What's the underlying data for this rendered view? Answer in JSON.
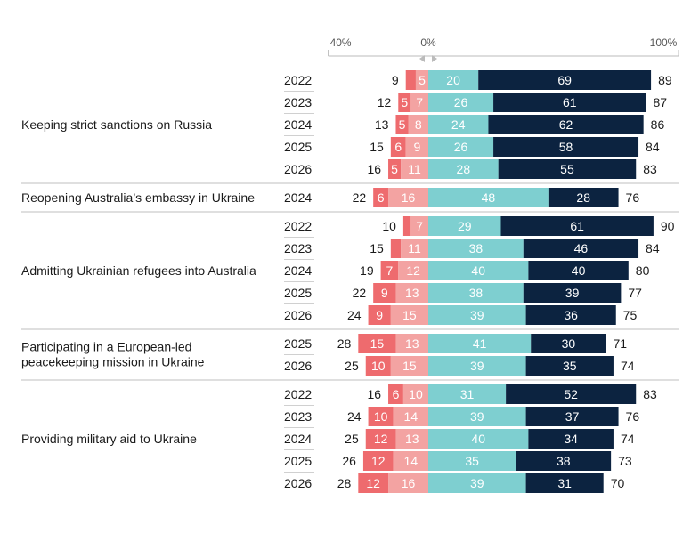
{
  "chart_data": {
    "type": "bar",
    "subtype": "diverging-stacked",
    "axis_ticks": {
      "left": "40%",
      "center": "0%",
      "right": "100%"
    },
    "xlim": [
      -40,
      100
    ],
    "colors": {
      "strongly_against": "#ee6b6e",
      "somewhat_against": "#f3a3a2",
      "somewhat_favour": "#7ecfd0",
      "strongly_favour": "#0c2340"
    },
    "groups": [
      {
        "label": "Keeping strict sanctions on Russia",
        "rows": [
          {
            "year": "2022",
            "against_total": 9,
            "strong_against": 4,
            "somewhat_against": 5,
            "somewhat_favour": 20,
            "strong_favour": 69,
            "favour_total": 89,
            "label_strong_against": ""
          },
          {
            "year": "2023",
            "against_total": 12,
            "strong_against": 5,
            "somewhat_against": 7,
            "somewhat_favour": 26,
            "strong_favour": 61,
            "favour_total": 87
          },
          {
            "year": "2024",
            "against_total": 13,
            "strong_against": 5,
            "somewhat_against": 8,
            "somewhat_favour": 24,
            "strong_favour": 62,
            "favour_total": 86
          },
          {
            "year": "2025",
            "against_total": 15,
            "strong_against": 6,
            "somewhat_against": 9,
            "somewhat_favour": 26,
            "strong_favour": 58,
            "favour_total": 84
          },
          {
            "year": "2026",
            "against_total": 16,
            "strong_against": 5,
            "somewhat_against": 11,
            "somewhat_favour": 28,
            "strong_favour": 55,
            "favour_total": 83
          }
        ]
      },
      {
        "label": "Reopening Australia’s embassy in Ukraine",
        "rows": [
          {
            "year": "2024",
            "against_total": 22,
            "strong_against": 6,
            "somewhat_against": 16,
            "somewhat_favour": 48,
            "strong_favour": 28,
            "favour_total": 76
          }
        ]
      },
      {
        "label": "Admitting Ukrainian refugees into Australia",
        "rows": [
          {
            "year": "2022",
            "against_total": 10,
            "strong_against": 3,
            "somewhat_against": 7,
            "somewhat_favour": 29,
            "strong_favour": 61,
            "favour_total": 90,
            "label_strong_against": ""
          },
          {
            "year": "2023",
            "against_total": 15,
            "strong_against": 4,
            "somewhat_against": 11,
            "somewhat_favour": 38,
            "strong_favour": 46,
            "favour_total": 84,
            "label_strong_against": ""
          },
          {
            "year": "2024",
            "against_total": 19,
            "strong_against": 7,
            "somewhat_against": 12,
            "somewhat_favour": 40,
            "strong_favour": 40,
            "favour_total": 80
          },
          {
            "year": "2025",
            "against_total": 22,
            "strong_against": 9,
            "somewhat_against": 13,
            "somewhat_favour": 38,
            "strong_favour": 39,
            "favour_total": 77
          },
          {
            "year": "2026",
            "against_total": 24,
            "strong_against": 9,
            "somewhat_against": 15,
            "somewhat_favour": 39,
            "strong_favour": 36,
            "favour_total": 75
          }
        ]
      },
      {
        "label_lines": [
          "Participating in a European-led",
          "peacekeeping mission in Ukraine"
        ],
        "rows": [
          {
            "year": "2025",
            "against_total": 28,
            "strong_against": 15,
            "somewhat_against": 13,
            "somewhat_favour": 41,
            "strong_favour": 30,
            "favour_total": 71
          },
          {
            "year": "2026",
            "against_total": 25,
            "strong_against": 10,
            "somewhat_against": 15,
            "somewhat_favour": 39,
            "strong_favour": 35,
            "favour_total": 74
          }
        ]
      },
      {
        "label": "Providing military aid to Ukraine",
        "rows": [
          {
            "year": "2022",
            "against_total": 16,
            "strong_against": 6,
            "somewhat_against": 10,
            "somewhat_favour": 31,
            "strong_favour": 52,
            "favour_total": 83
          },
          {
            "year": "2023",
            "against_total": 24,
            "strong_against": 10,
            "somewhat_against": 14,
            "somewhat_favour": 39,
            "strong_favour": 37,
            "favour_total": 76
          },
          {
            "year": "2024",
            "against_total": 25,
            "strong_against": 12,
            "somewhat_against": 13,
            "somewhat_favour": 40,
            "strong_favour": 34,
            "favour_total": 74
          },
          {
            "year": "2025",
            "against_total": 26,
            "strong_against": 12,
            "somewhat_against": 14,
            "somewhat_favour": 35,
            "strong_favour": 38,
            "favour_total": 73
          },
          {
            "year": "2026",
            "against_total": 28,
            "strong_against": 12,
            "somewhat_against": 16,
            "somewhat_favour": 39,
            "strong_favour": 31,
            "favour_total": 70
          }
        ]
      }
    ]
  }
}
